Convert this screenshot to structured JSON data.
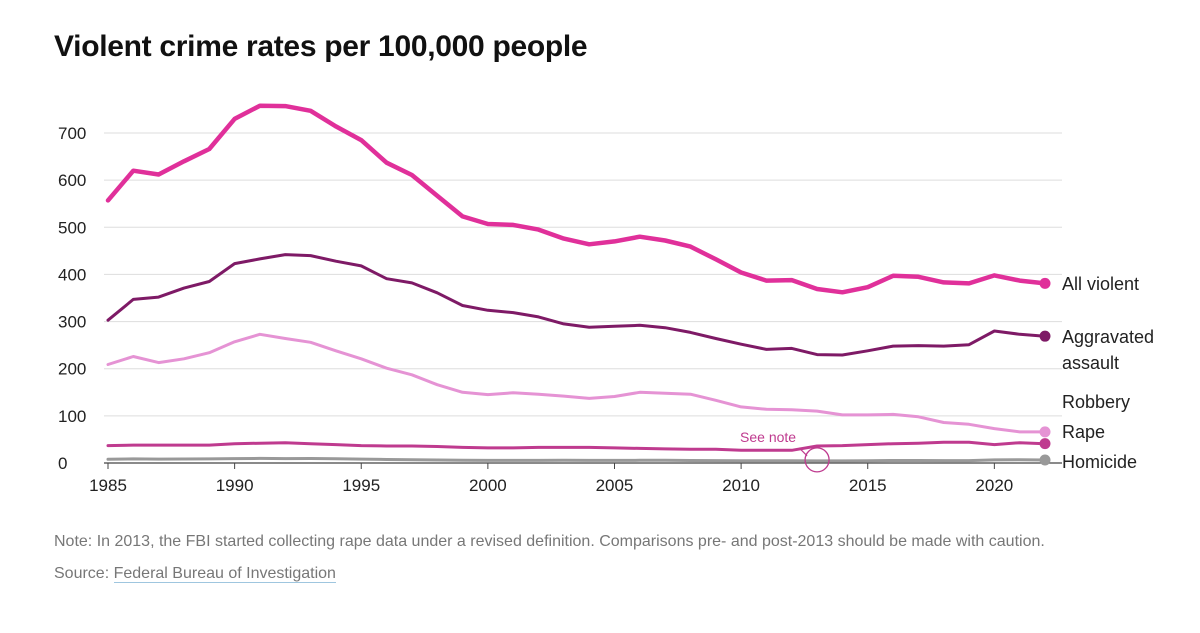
{
  "chart_data": {
    "type": "line",
    "title": "Violent crime rates per 100,000 people",
    "xlabel": "",
    "ylabel": "",
    "xlim": [
      1985,
      2022
    ],
    "ylim": [
      0,
      700
    ],
    "y_ticks": [
      0,
      100,
      200,
      300,
      400,
      500,
      600,
      700
    ],
    "x_ticks": [
      1985,
      1990,
      1995,
      2000,
      2005,
      2010,
      2015,
      2020
    ],
    "grid": true,
    "x": [
      1985,
      1986,
      1987,
      1988,
      1989,
      1990,
      1991,
      1992,
      1993,
      1994,
      1995,
      1996,
      1997,
      1998,
      1999,
      2000,
      2001,
      2002,
      2003,
      2004,
      2005,
      2006,
      2007,
      2008,
      2009,
      2010,
      2011,
      2012,
      2013,
      2014,
      2015,
      2016,
      2017,
      2018,
      2019,
      2020,
      2021,
      2022
    ],
    "series": [
      {
        "name": "All violent",
        "label_lines": [
          "All violent"
        ],
        "color": "#e0309a",
        "width": 4.5,
        "values": [
          557,
          620,
          612,
          640,
          666,
          730,
          758,
          757,
          747,
          714,
          685,
          637,
          611,
          567,
          523,
          507,
          505,
          495,
          476,
          464,
          470,
          480,
          472,
          459,
          432,
          404,
          387,
          388,
          369,
          362,
          373,
          397,
          395,
          383,
          381,
          398,
          387,
          381
        ]
      },
      {
        "name": "Aggravated assault",
        "label_lines": [
          "Aggravated",
          "assault"
        ],
        "color": "#7e1a66",
        "width": 3,
        "values": [
          303,
          347,
          352,
          371,
          385,
          423,
          433,
          442,
          440,
          428,
          418,
          391,
          382,
          361,
          334,
          324,
          319,
          310,
          295,
          288,
          290,
          292,
          287,
          277,
          264,
          252,
          241,
          243,
          230,
          229,
          238,
          248,
          249,
          248,
          251,
          280,
          273,
          269
        ]
      },
      {
        "name": "Robbery",
        "label_lines": [
          "Robbery"
        ],
        "color": "#e593d4",
        "width": 3,
        "values": [
          209,
          226,
          213,
          221,
          234,
          257,
          273,
          264,
          256,
          238,
          221,
          201,
          187,
          166,
          150,
          145,
          149,
          146,
          142,
          137,
          141,
          150,
          148,
          146,
          133,
          119,
          114,
          113,
          110,
          102,
          102,
          103,
          98,
          86,
          82,
          73,
          66,
          66
        ]
      },
      {
        "name": "Rape",
        "label_lines": [
          "Rape"
        ],
        "color": "#bf3b8f",
        "width": 3,
        "values": [
          37,
          38,
          38,
          38,
          38,
          41,
          42,
          43,
          41,
          39,
          37,
          36,
          36,
          35,
          33,
          32,
          32,
          33,
          33,
          33,
          32,
          31,
          30,
          29,
          29,
          27,
          27,
          27,
          36,
          37,
          39,
          41,
          42,
          44,
          44,
          39,
          43,
          41
        ]
      },
      {
        "name": "Homicide",
        "label_lines": [
          "Homicide"
        ],
        "color": "#999999",
        "width": 3,
        "values": [
          7.9,
          8.6,
          8.3,
          8.4,
          8.7,
          9.4,
          9.8,
          9.3,
          9.5,
          9.0,
          8.2,
          7.4,
          6.8,
          6.3,
          5.7,
          5.5,
          5.6,
          5.6,
          5.7,
          5.5,
          5.6,
          5.8,
          5.7,
          5.4,
          5.0,
          4.8,
          4.7,
          4.7,
          4.5,
          4.4,
          4.9,
          5.4,
          5.3,
          5.0,
          5.1,
          6.5,
          6.9,
          6.3
        ]
      }
    ],
    "annotations": [
      {
        "text": "See note",
        "x": 2013,
        "y": 30,
        "color": "#bf3b8f"
      }
    ]
  },
  "footnote": "Note: In 2013, the FBI started collecting rape data under a revised definition. Comparisons pre- and post-2013 should be made with caution.",
  "source": {
    "prefix": "Source: ",
    "link_text": "Federal Bureau of Investigation"
  }
}
